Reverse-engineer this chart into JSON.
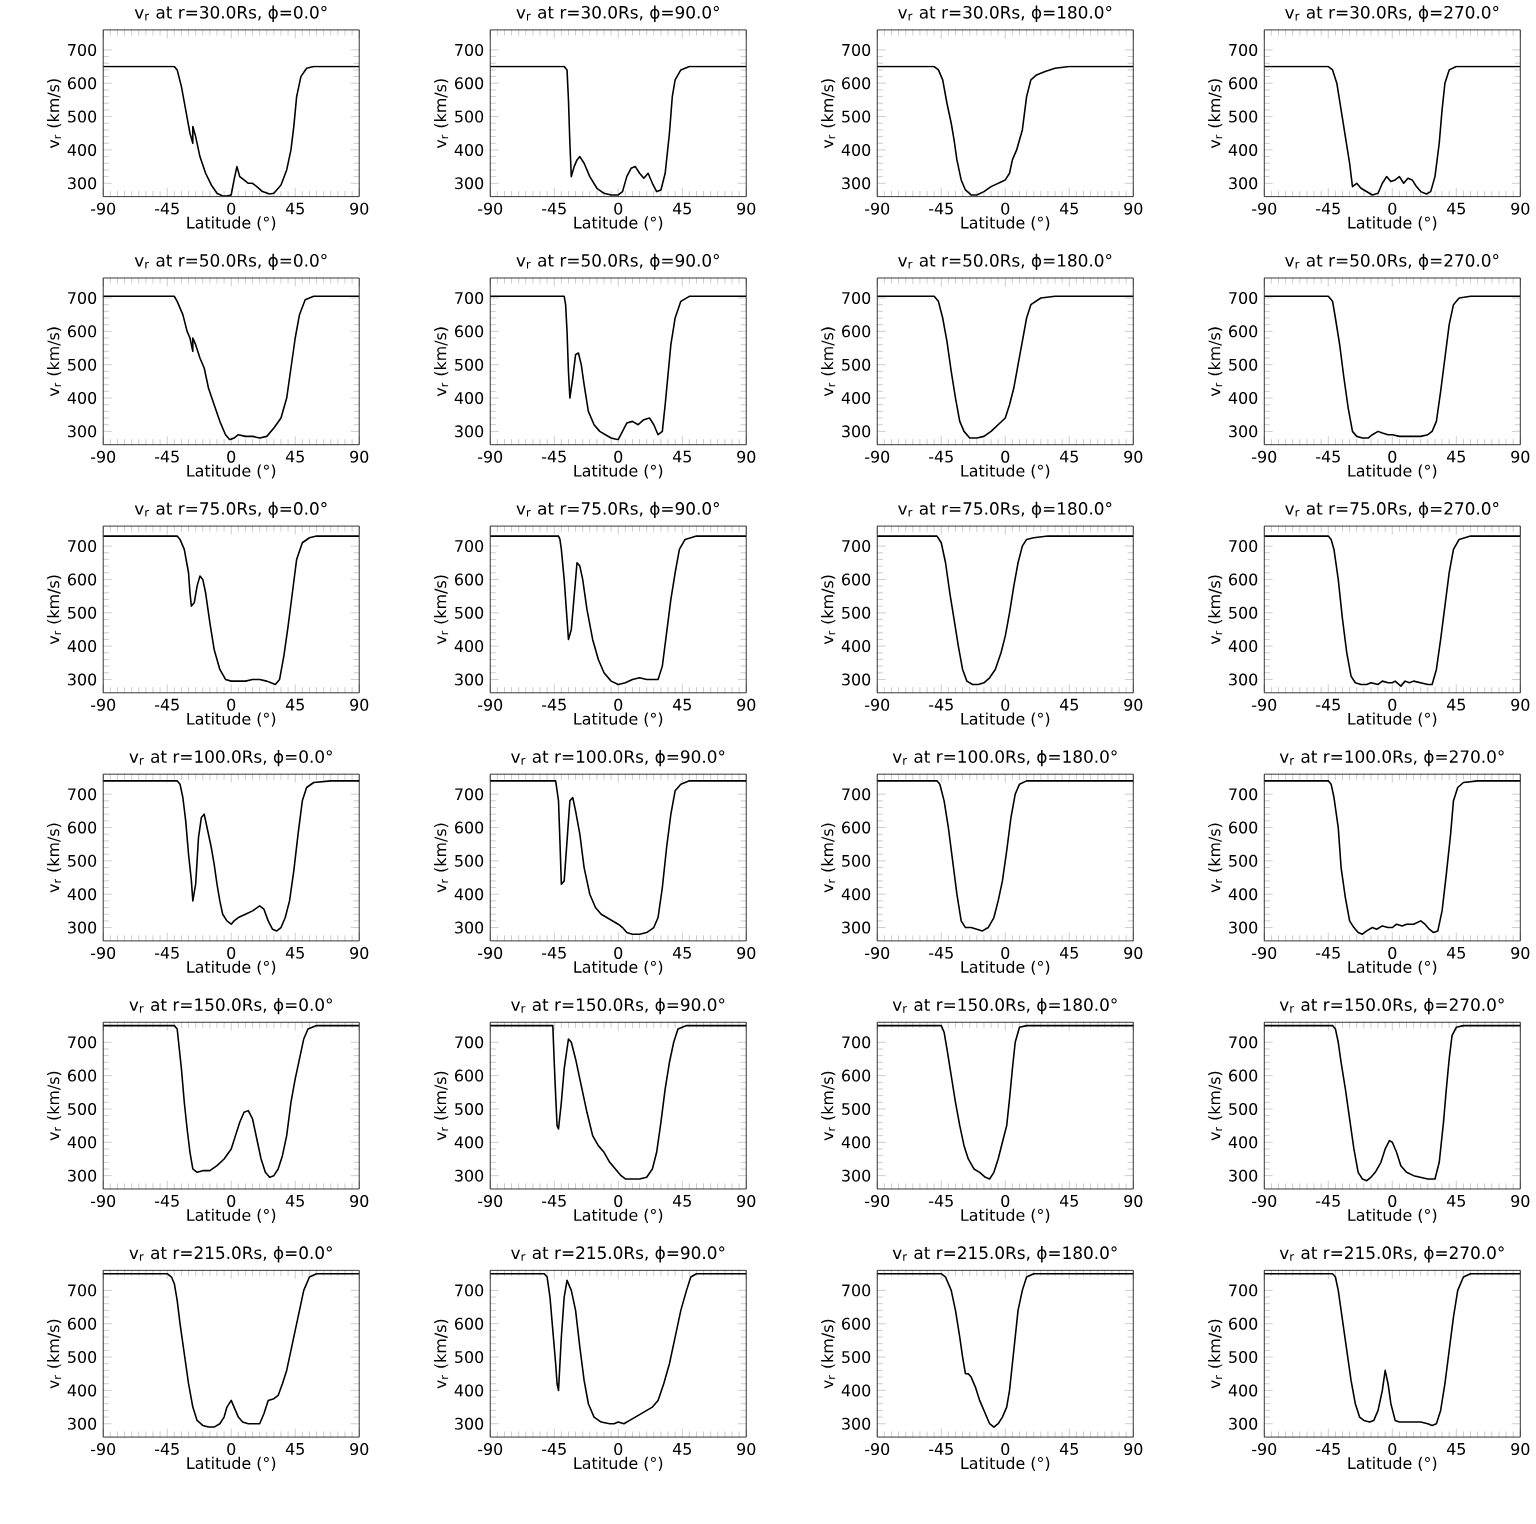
{
  "chart_data": [
    {
      "type": "line",
      "title": "v$_{r}$ at r=30.0Rs, ϕ=0.0°",
      "xlabel": "Latitude (°)",
      "ylabel": "v$_{r}$ (km/s)",
      "color": "#000000",
      "xlim": [
        -90,
        90
      ],
      "ylim": [
        260,
        760
      ],
      "xticks": [
        -90,
        -45,
        0,
        45,
        90
      ],
      "yticks": [
        300,
        400,
        500,
        600,
        700
      ],
      "x": [
        -90,
        -40,
        -38,
        -35,
        -32,
        -29,
        -27,
        -27,
        -25,
        -22,
        -18,
        -14,
        -10,
        -6,
        -3,
        0,
        2,
        4,
        6,
        9,
        12,
        15,
        18,
        22,
        27,
        30,
        35,
        39,
        42,
        44,
        46,
        49,
        53,
        58,
        90
      ],
      "values": [
        650,
        650,
        640,
        590,
        520,
        450,
        420,
        470,
        440,
        380,
        330,
        295,
        270,
        262,
        262,
        265,
        310,
        350,
        320,
        310,
        300,
        300,
        290,
        275,
        268,
        270,
        295,
        340,
        400,
        470,
        560,
        620,
        645,
        650,
        650
      ]
    },
    {
      "type": "line",
      "title": "v$_{r}$ at r=30.0Rs, ϕ=90.0°",
      "xlabel": "Latitude (°)",
      "ylabel": "v$_{r}$ (km/s)",
      "color": "#000000",
      "xlim": [
        -90,
        90
      ],
      "ylim": [
        260,
        760
      ],
      "xticks": [
        -90,
        -45,
        0,
        45,
        90
      ],
      "yticks": [
        300,
        400,
        500,
        600,
        700
      ],
      "x": [
        -90,
        -38,
        -36,
        -35,
        -34,
        -33,
        -31,
        -29,
        -27,
        -24,
        -20,
        -15,
        -10,
        -5,
        0,
        3,
        6,
        9,
        12,
        15,
        18,
        21,
        24,
        27,
        30,
        33,
        36,
        38,
        40,
        44,
        50,
        90
      ],
      "values": [
        650,
        650,
        640,
        550,
        420,
        320,
        350,
        370,
        380,
        360,
        320,
        285,
        270,
        265,
        265,
        275,
        320,
        345,
        350,
        330,
        315,
        330,
        300,
        275,
        280,
        330,
        450,
        560,
        610,
        640,
        650,
        650
      ]
    },
    {
      "type": "line",
      "title": "v$_{r}$ at r=30.0Rs, ϕ=180.0°",
      "xlabel": "Latitude (°)",
      "ylabel": "v$_{r}$ (km/s)",
      "color": "#000000",
      "xlim": [
        -90,
        90
      ],
      "ylim": [
        260,
        760
      ],
      "xticks": [
        -90,
        -45,
        0,
        45,
        90
      ],
      "yticks": [
        300,
        400,
        500,
        600,
        700
      ],
      "x": [
        -90,
        -50,
        -47,
        -44,
        -41,
        -38,
        -36,
        -34,
        -31,
        -28,
        -24,
        -20,
        -15,
        -10,
        -5,
        0,
        3,
        5,
        8,
        12,
        15,
        18,
        22,
        28,
        35,
        45,
        90
      ],
      "values": [
        650,
        650,
        640,
        610,
        540,
        480,
        430,
        370,
        310,
        280,
        265,
        265,
        275,
        290,
        300,
        310,
        330,
        370,
        400,
        460,
        560,
        610,
        625,
        635,
        645,
        650,
        650
      ]
    },
    {
      "type": "line",
      "title": "v$_{r}$ at r=30.0Rs, ϕ=270.0°",
      "xlabel": "Latitude (°)",
      "ylabel": "v$_{r}$ (km/s)",
      "color": "#000000",
      "xlim": [
        -90,
        90
      ],
      "ylim": [
        260,
        760
      ],
      "xticks": [
        -90,
        -45,
        0,
        45,
        90
      ],
      "yticks": [
        300,
        400,
        500,
        600,
        700
      ],
      "x": [
        -90,
        -45,
        -42,
        -39,
        -36,
        -33,
        -30,
        -28,
        -25,
        -22,
        -18,
        -14,
        -10,
        -7,
        -4,
        -1,
        2,
        5,
        8,
        11,
        14,
        17,
        20,
        24,
        27,
        30,
        33,
        35,
        37,
        40,
        45,
        90
      ],
      "values": [
        650,
        650,
        640,
        600,
        520,
        440,
        360,
        290,
        300,
        285,
        275,
        265,
        270,
        300,
        320,
        305,
        310,
        320,
        300,
        315,
        310,
        290,
        275,
        268,
        275,
        320,
        420,
        520,
        600,
        640,
        650,
        650
      ]
    },
    {
      "type": "line",
      "title": "v$_{r}$ at r=50.0Rs, ϕ=0.0°",
      "xlabel": "Latitude (°)",
      "ylabel": "v$_{r}$ (km/s)",
      "color": "#000000",
      "xlim": [
        -90,
        90
      ],
      "ylim": [
        260,
        760
      ],
      "xticks": [
        -90,
        -45,
        0,
        45,
        90
      ],
      "yticks": [
        300,
        400,
        500,
        600,
        700
      ],
      "x": [
        -90,
        -40,
        -38,
        -34,
        -31,
        -29,
        -27,
        -27,
        -25,
        -22,
        -19,
        -16,
        -12,
        -8,
        -4,
        -1,
        2,
        5,
        10,
        15,
        20,
        25,
        30,
        35,
        39,
        42,
        45,
        48,
        52,
        58,
        90
      ],
      "values": [
        705,
        705,
        690,
        650,
        600,
        580,
        540,
        580,
        560,
        520,
        490,
        430,
        380,
        330,
        290,
        275,
        280,
        290,
        285,
        285,
        280,
        285,
        310,
        340,
        400,
        490,
        580,
        650,
        695,
        705,
        705
      ]
    },
    {
      "type": "line",
      "title": "v$_{r}$ at r=50.0Rs, ϕ=90.0°",
      "xlabel": "Latitude (°)",
      "ylabel": "v$_{r}$ (km/s)",
      "color": "#000000",
      "xlim": [
        -90,
        90
      ],
      "ylim": [
        260,
        760
      ],
      "xticks": [
        -90,
        -45,
        0,
        45,
        90
      ],
      "yticks": [
        300,
        400,
        500,
        600,
        700
      ],
      "x": [
        -90,
        -38,
        -37,
        -36,
        -35,
        -34,
        -32,
        -30,
        -28,
        -26,
        -24,
        -21,
        -17,
        -13,
        -9,
        -5,
        0,
        3,
        6,
        10,
        14,
        18,
        22,
        25,
        28,
        31,
        33,
        35,
        37,
        40,
        44,
        50,
        90
      ],
      "values": [
        705,
        705,
        680,
        600,
        480,
        400,
        460,
        530,
        535,
        500,
        440,
        360,
        320,
        300,
        290,
        280,
        275,
        300,
        325,
        330,
        320,
        335,
        340,
        320,
        290,
        300,
        380,
        470,
        560,
        640,
        690,
        705,
        705
      ]
    },
    {
      "type": "line",
      "title": "v$_{r}$ at r=50.0Rs, ϕ=180.0°",
      "xlabel": "Latitude (°)",
      "ylabel": "v$_{r}$ (km/s)",
      "color": "#000000",
      "xlim": [
        -90,
        90
      ],
      "ylim": [
        260,
        760
      ],
      "xticks": [
        -90,
        -45,
        0,
        45,
        90
      ],
      "yticks": [
        300,
        400,
        500,
        600,
        700
      ],
      "x": [
        -90,
        -50,
        -47,
        -44,
        -41,
        -38,
        -35,
        -32,
        -29,
        -25,
        -20,
        -15,
        -10,
        -5,
        0,
        3,
        6,
        9,
        12,
        15,
        18,
        25,
        35,
        90
      ],
      "values": [
        705,
        705,
        690,
        640,
        570,
        480,
        400,
        330,
        300,
        280,
        280,
        285,
        300,
        320,
        340,
        380,
        430,
        500,
        570,
        640,
        680,
        700,
        705,
        705
      ]
    },
    {
      "type": "line",
      "title": "v$_{r}$ at r=50.0Rs, ϕ=270.0°",
      "xlabel": "Latitude (°)",
      "ylabel": "v$_{r}$ (km/s)",
      "color": "#000000",
      "xlim": [
        -90,
        90
      ],
      "ylim": [
        260,
        760
      ],
      "xticks": [
        -90,
        -45,
        0,
        45,
        90
      ],
      "yticks": [
        300,
        400,
        500,
        600,
        700
      ],
      "x": [
        -90,
        -45,
        -42,
        -40,
        -37,
        -34,
        -31,
        -28,
        -25,
        -21,
        -17,
        -14,
        -10,
        -7,
        -3,
        0,
        5,
        10,
        20,
        25,
        28,
        31,
        34,
        37,
        40,
        43,
        47,
        55,
        90
      ],
      "values": [
        705,
        705,
        690,
        640,
        560,
        460,
        370,
        300,
        285,
        280,
        280,
        290,
        300,
        295,
        290,
        290,
        285,
        285,
        285,
        290,
        300,
        330,
        420,
        520,
        620,
        680,
        700,
        705,
        705
      ]
    },
    {
      "type": "line",
      "title": "v$_{r}$ at r=75.0Rs, ϕ=0.0°",
      "xlabel": "Latitude (°)",
      "ylabel": "v$_{r}$ (km/s)",
      "color": "#000000",
      "xlim": [
        -90,
        90
      ],
      "ylim": [
        260,
        760
      ],
      "xticks": [
        -90,
        -45,
        0,
        45,
        90
      ],
      "yticks": [
        300,
        400,
        500,
        600,
        700
      ],
      "x": [
        -90,
        -38,
        -36,
        -33,
        -30,
        -29,
        -28,
        -26,
        -24,
        -22,
        -20,
        -18,
        -15,
        -12,
        -8,
        -4,
        0,
        5,
        10,
        15,
        20,
        25,
        28,
        31,
        34,
        37,
        40,
        43,
        46,
        50,
        55,
        60,
        90
      ],
      "values": [
        730,
        730,
        720,
        690,
        620,
        560,
        520,
        530,
        580,
        610,
        600,
        560,
        470,
        390,
        330,
        300,
        295,
        295,
        295,
        300,
        300,
        295,
        290,
        285,
        300,
        370,
        460,
        560,
        660,
        710,
        725,
        730,
        730
      ]
    },
    {
      "type": "line",
      "title": "v$_{r}$ at r=75.0Rs, ϕ=90.0°",
      "xlabel": "Latitude (°)",
      "ylabel": "v$_{r}$ (km/s)",
      "color": "#000000",
      "xlim": [
        -90,
        90
      ],
      "ylim": [
        260,
        760
      ],
      "xticks": [
        -90,
        -45,
        0,
        45,
        90
      ],
      "yticks": [
        300,
        400,
        500,
        600,
        700
      ],
      "x": [
        -90,
        -42,
        -41,
        -40,
        -38,
        -36,
        -35,
        -33,
        -31,
        -29,
        -27,
        -25,
        -22,
        -18,
        -14,
        -10,
        -5,
        0,
        5,
        10,
        15,
        20,
        25,
        28,
        31,
        34,
        37,
        40,
        43,
        47,
        55,
        90
      ],
      "values": [
        730,
        730,
        720,
        690,
        600,
        480,
        420,
        450,
        550,
        650,
        640,
        600,
        510,
        420,
        360,
        320,
        295,
        285,
        290,
        300,
        305,
        300,
        300,
        300,
        340,
        440,
        540,
        620,
        690,
        720,
        730,
        730
      ]
    },
    {
      "type": "line",
      "title": "v$_{r}$ at r=75.0Rs, ϕ=180.0°",
      "xlabel": "Latitude (°)",
      "ylabel": "v$_{r}$ (km/s)",
      "color": "#000000",
      "xlim": [
        -90,
        90
      ],
      "ylim": [
        260,
        760
      ],
      "xticks": [
        -90,
        -45,
        0,
        45,
        90
      ],
      "yticks": [
        300,
        400,
        500,
        600,
        700
      ],
      "x": [
        -90,
        -48,
        -45,
        -42,
        -39,
        -36,
        -33,
        -30,
        -27,
        -23,
        -19,
        -15,
        -11,
        -7,
        -3,
        0,
        3,
        6,
        9,
        12,
        15,
        20,
        30,
        90
      ],
      "values": [
        730,
        730,
        710,
        650,
        560,
        480,
        400,
        330,
        295,
        285,
        285,
        290,
        305,
        330,
        380,
        430,
        500,
        580,
        650,
        700,
        720,
        725,
        730,
        730
      ]
    },
    {
      "type": "line",
      "title": "v$_{r}$ at r=75.0Rs, ϕ=270.0°",
      "xlabel": "Latitude (°)",
      "ylabel": "v$_{r}$ (km/s)",
      "color": "#000000",
      "xlim": [
        -90,
        90
      ],
      "ylim": [
        260,
        760
      ],
      "xticks": [
        -90,
        -45,
        0,
        45,
        90
      ],
      "yticks": [
        300,
        400,
        500,
        600,
        700
      ],
      "x": [
        -90,
        -45,
        -43,
        -41,
        -38,
        -35,
        -32,
        -29,
        -26,
        -22,
        -18,
        -15,
        -10,
        -7,
        -3,
        0,
        2,
        6,
        9,
        12,
        15,
        20,
        25,
        28,
        31,
        34,
        37,
        40,
        43,
        47,
        55,
        90
      ],
      "values": [
        730,
        730,
        720,
        690,
        600,
        480,
        380,
        310,
        290,
        285,
        285,
        290,
        285,
        295,
        290,
        290,
        295,
        280,
        295,
        290,
        295,
        290,
        285,
        285,
        330,
        420,
        520,
        620,
        690,
        720,
        730,
        730
      ]
    },
    {
      "type": "line",
      "title": "v$_{r}$ at r=100.0Rs, ϕ=0.0°",
      "xlabel": "Latitude (°)",
      "ylabel": "v$_{r}$ (km/s)",
      "color": "#000000",
      "xlim": [
        -90,
        90
      ],
      "ylim": [
        260,
        760
      ],
      "xticks": [
        -90,
        -45,
        0,
        45,
        90
      ],
      "yticks": [
        300,
        400,
        500,
        600,
        700
      ],
      "x": [
        -90,
        -38,
        -36,
        -34,
        -32,
        -30,
        -28,
        -27,
        -25,
        -23,
        -21,
        -19,
        -17,
        -14,
        -12,
        -10,
        -8,
        -6,
        -3,
        0,
        2,
        5,
        10,
        15,
        20,
        23,
        26,
        29,
        32,
        35,
        38,
        41,
        44,
        47,
        50,
        53,
        58,
        70,
        90
      ],
      "values": [
        740,
        740,
        730,
        690,
        620,
        520,
        440,
        380,
        430,
        570,
        630,
        640,
        600,
        540,
        490,
        430,
        380,
        340,
        320,
        310,
        320,
        330,
        340,
        350,
        365,
        355,
        320,
        295,
        290,
        300,
        330,
        380,
        470,
        580,
        680,
        720,
        735,
        740,
        740
      ]
    },
    {
      "type": "line",
      "title": "v$_{r}$ at r=100.0Rs, ϕ=90.0°",
      "xlabel": "Latitude (°)",
      "ylabel": "v$_{r}$ (km/s)",
      "color": "#000000",
      "xlim": [
        -90,
        90
      ],
      "ylim": [
        260,
        760
      ],
      "xticks": [
        -90,
        -45,
        0,
        45,
        90
      ],
      "yticks": [
        300,
        400,
        500,
        600,
        700
      ],
      "x": [
        -90,
        -45,
        -44,
        -42,
        -41,
        -40,
        -38,
        -36,
        -34,
        -32,
        -30,
        -27,
        -24,
        -20,
        -16,
        -12,
        -8,
        -4,
        0,
        3,
        6,
        10,
        15,
        20,
        25,
        28,
        31,
        34,
        37,
        40,
        44,
        50,
        90
      ],
      "values": [
        740,
        740,
        740,
        680,
        560,
        430,
        440,
        560,
        680,
        690,
        650,
        580,
        480,
        400,
        360,
        340,
        330,
        320,
        310,
        300,
        285,
        280,
        280,
        285,
        300,
        330,
        420,
        540,
        640,
        710,
        730,
        740,
        740
      ]
    },
    {
      "type": "line",
      "title": "v$_{r}$ at r=100.0Rs, ϕ=180.0°",
      "xlabel": "Latitude (°)",
      "ylabel": "v$_{r}$ (km/s)",
      "color": "#000000",
      "xlim": [
        -90,
        90
      ],
      "ylim": [
        260,
        760
      ],
      "xticks": [
        -90,
        -45,
        0,
        45,
        90
      ],
      "yticks": [
        300,
        400,
        500,
        600,
        700
      ],
      "x": [
        -90,
        -48,
        -46,
        -43,
        -40,
        -37,
        -34,
        -31,
        -28,
        -24,
        -20,
        -16,
        -12,
        -8,
        -5,
        -2,
        1,
        4,
        7,
        10,
        15,
        90
      ],
      "values": [
        740,
        740,
        730,
        680,
        600,
        500,
        400,
        320,
        300,
        300,
        295,
        290,
        300,
        330,
        380,
        440,
        530,
        630,
        700,
        730,
        740,
        740
      ]
    },
    {
      "type": "line",
      "title": "v$_{r}$ at r=100.0Rs, ϕ=270.0°",
      "xlabel": "Latitude (°)",
      "ylabel": "v$_{r}$ (km/s)",
      "color": "#000000",
      "xlim": [
        -90,
        90
      ],
      "ylim": [
        260,
        760
      ],
      "xticks": [
        -90,
        -45,
        0,
        45,
        90
      ],
      "yticks": [
        300,
        400,
        500,
        600,
        700
      ],
      "x": [
        -90,
        -45,
        -43,
        -41,
        -38,
        -36,
        -33,
        -30,
        -27,
        -24,
        -21,
        -18,
        -14,
        -11,
        -7,
        -3,
        0,
        3,
        7,
        10,
        15,
        20,
        23,
        26,
        29,
        32,
        35,
        38,
        41,
        43,
        46,
        50,
        60,
        90
      ],
      "values": [
        740,
        740,
        730,
        690,
        600,
        480,
        390,
        320,
        300,
        285,
        280,
        290,
        300,
        295,
        305,
        300,
        300,
        310,
        305,
        310,
        310,
        320,
        310,
        295,
        285,
        290,
        350,
        460,
        580,
        680,
        720,
        735,
        740,
        740
      ]
    },
    {
      "type": "line",
      "title": "v$_{r}$ at r=150.0Rs, ϕ=0.0°",
      "xlabel": "Latitude (°)",
      "ylabel": "v$_{r}$ (km/s)",
      "color": "#000000",
      "xlim": [
        -90,
        90
      ],
      "ylim": [
        260,
        760
      ],
      "xticks": [
        -90,
        -45,
        0,
        45,
        90
      ],
      "yticks": [
        300,
        400,
        500,
        600,
        700
      ],
      "x": [
        -90,
        -40,
        -38,
        -37,
        -35,
        -33,
        -31,
        -29,
        -27,
        -24,
        -20,
        -15,
        -10,
        -5,
        0,
        3,
        6,
        9,
        12,
        15,
        18,
        21,
        24,
        27,
        30,
        33,
        36,
        39,
        42,
        45,
        48,
        51,
        54,
        60,
        90
      ],
      "values": [
        750,
        750,
        740,
        700,
        620,
        520,
        440,
        370,
        320,
        310,
        315,
        315,
        330,
        350,
        380,
        420,
        460,
        490,
        495,
        470,
        410,
        350,
        310,
        295,
        300,
        320,
        360,
        420,
        520,
        590,
        650,
        710,
        740,
        750,
        750
      ]
    },
    {
      "type": "line",
      "title": "v$_{r}$ at r=150.0Rs, ϕ=90.0°",
      "xlabel": "Latitude (°)",
      "ylabel": "v$_{r}$ (km/s)",
      "color": "#000000",
      "xlim": [
        -90,
        90
      ],
      "ylim": [
        260,
        760
      ],
      "xticks": [
        -90,
        -45,
        0,
        45,
        90
      ],
      "yticks": [
        300,
        400,
        500,
        600,
        700
      ],
      "x": [
        -90,
        -46,
        -45,
        -44,
        -43,
        -42,
        -40,
        -38,
        -35,
        -33,
        -30,
        -26,
        -22,
        -18,
        -14,
        -10,
        -6,
        -2,
        2,
        5,
        10,
        15,
        20,
        24,
        27,
        30,
        33,
        36,
        39,
        42,
        48,
        90
      ],
      "values": [
        750,
        750,
        640,
        540,
        450,
        440,
        520,
        620,
        710,
        700,
        650,
        570,
        490,
        420,
        390,
        370,
        340,
        320,
        300,
        290,
        290,
        290,
        295,
        320,
        370,
        460,
        560,
        640,
        700,
        740,
        750,
        750
      ]
    },
    {
      "type": "line",
      "title": "v$_{r}$ at r=150.0Rs, ϕ=180.0°",
      "xlabel": "Latitude (°)",
      "ylabel": "v$_{r}$ (km/s)",
      "color": "#000000",
      "xlim": [
        -90,
        90
      ],
      "ylim": [
        260,
        760
      ],
      "xticks": [
        -90,
        -45,
        0,
        45,
        90
      ],
      "yticks": [
        300,
        400,
        500,
        600,
        700
      ],
      "x": [
        -90,
        -45,
        -43,
        -41,
        -38,
        -35,
        -32,
        -29,
        -26,
        -22,
        -18,
        -14,
        -11,
        -8,
        -5,
        -2,
        1,
        3,
        5,
        7,
        10,
        15,
        90
      ],
      "values": [
        750,
        750,
        730,
        680,
        600,
        520,
        450,
        390,
        350,
        320,
        310,
        295,
        290,
        310,
        350,
        400,
        450,
        530,
        620,
        700,
        745,
        750,
        750
      ]
    },
    {
      "type": "line",
      "title": "v$_{r}$ at r=150.0Rs, ϕ=270.0°",
      "xlabel": "Latitude (°)",
      "ylabel": "v$_{r}$ (km/s)",
      "color": "#000000",
      "xlim": [
        -90,
        90
      ],
      "ylim": [
        260,
        760
      ],
      "xticks": [
        -90,
        -45,
        0,
        45,
        90
      ],
      "yticks": [
        300,
        400,
        500,
        600,
        700
      ],
      "x": [
        -90,
        -42,
        -40,
        -38,
        -36,
        -33,
        -30,
        -27,
        -24,
        -21,
        -18,
        -15,
        -12,
        -8,
        -5,
        -2,
        0,
        3,
        6,
        10,
        15,
        20,
        25,
        30,
        33,
        36,
        38,
        40,
        42,
        45,
        50,
        90
      ],
      "values": [
        750,
        750,
        740,
        700,
        640,
        560,
        470,
        380,
        310,
        290,
        285,
        295,
        310,
        340,
        380,
        405,
        400,
        370,
        330,
        310,
        300,
        295,
        290,
        290,
        340,
        460,
        560,
        650,
        720,
        745,
        750,
        750
      ]
    },
    {
      "type": "line",
      "title": "v$_{r}$ at r=215.0Rs, ϕ=0.0°",
      "xlabel": "Latitude (°)",
      "ylabel": "v$_{r}$ (km/s)",
      "color": "#000000",
      "xlim": [
        -90,
        90
      ],
      "ylim": [
        260,
        760
      ],
      "xticks": [
        -90,
        -45,
        0,
        45,
        90
      ],
      "yticks": [
        300,
        400,
        500,
        600,
        700
      ],
      "x": [
        -90,
        -45,
        -42,
        -40,
        -38,
        -36,
        -33,
        -30,
        -27,
        -24,
        -20,
        -16,
        -12,
        -8,
        -5,
        -3,
        0,
        2,
        5,
        8,
        12,
        16,
        20,
        23,
        26,
        30,
        33,
        36,
        39,
        42,
        45,
        48,
        51,
        55,
        60,
        90
      ],
      "values": [
        750,
        750,
        740,
        720,
        670,
        600,
        510,
        420,
        350,
        310,
        295,
        290,
        290,
        300,
        320,
        350,
        370,
        350,
        320,
        305,
        300,
        300,
        300,
        330,
        370,
        375,
        385,
        420,
        460,
        520,
        580,
        640,
        700,
        740,
        750,
        750
      ]
    },
    {
      "type": "line",
      "title": "v$_{r}$ at r=215.0Rs, ϕ=90.0°",
      "xlabel": "Latitude (°)",
      "ylabel": "v$_{r}$ (km/s)",
      "color": "#000000",
      "xlim": [
        -90,
        90
      ],
      "ylim": [
        260,
        760
      ],
      "xticks": [
        -90,
        -45,
        0,
        45,
        90
      ],
      "yticks": [
        300,
        400,
        500,
        600,
        700
      ],
      "x": [
        -90,
        -52,
        -50,
        -48,
        -46,
        -44,
        -43,
        -42,
        -40,
        -38,
        -36,
        -33,
        -30,
        -27,
        -24,
        -21,
        -17,
        -12,
        -6,
        -3,
        0,
        4,
        8,
        12,
        16,
        20,
        24,
        28,
        32,
        36,
        40,
        44,
        48,
        51,
        55,
        90
      ],
      "values": [
        750,
        750,
        740,
        680,
        580,
        480,
        420,
        400,
        560,
        680,
        730,
        700,
        640,
        530,
        430,
        360,
        320,
        305,
        300,
        300,
        305,
        300,
        310,
        320,
        330,
        340,
        350,
        370,
        420,
        480,
        560,
        640,
        700,
        740,
        750,
        750
      ]
    },
    {
      "type": "line",
      "title": "v$_{r}$ at r=215.0Rs, ϕ=180.0°",
      "xlabel": "Latitude (°)",
      "ylabel": "v$_{r}$ (km/s)",
      "color": "#000000",
      "xlim": [
        -90,
        90
      ],
      "ylim": [
        260,
        760
      ],
      "xticks": [
        -90,
        -45,
        0,
        45,
        90
      ],
      "yticks": [
        300,
        400,
        500,
        600,
        700
      ],
      "x": [
        -90,
        -45,
        -42,
        -38,
        -35,
        -32,
        -30,
        -28,
        -26,
        -24,
        -21,
        -18,
        -14,
        -11,
        -8,
        -5,
        -2,
        1,
        3,
        5,
        7,
        9,
        12,
        15,
        20,
        90
      ],
      "values": [
        750,
        750,
        740,
        700,
        640,
        560,
        500,
        450,
        450,
        440,
        410,
        370,
        330,
        300,
        290,
        300,
        320,
        350,
        400,
        480,
        560,
        640,
        700,
        740,
        750,
        750
      ]
    },
    {
      "type": "line",
      "title": "v$_{r}$ at r=215.0Rs, ϕ=270.0°",
      "xlabel": "Latitude (°)",
      "ylabel": "v$_{r}$ (km/s)",
      "color": "#000000",
      "xlim": [
        -90,
        90
      ],
      "ylim": [
        260,
        760
      ],
      "xticks": [
        -90,
        -45,
        0,
        45,
        90
      ],
      "yticks": [
        300,
        400,
        500,
        600,
        700
      ],
      "x": [
        -90,
        -42,
        -40,
        -38,
        -35,
        -32,
        -29,
        -26,
        -23,
        -20,
        -16,
        -13,
        -10,
        -7,
        -5,
        -3,
        -1,
        2,
        5,
        10,
        15,
        20,
        25,
        28,
        31,
        34,
        37,
        40,
        43,
        46,
        50,
        55,
        90
      ],
      "values": [
        750,
        750,
        740,
        700,
        610,
        520,
        430,
        360,
        320,
        310,
        305,
        310,
        340,
        400,
        460,
        420,
        360,
        310,
        305,
        305,
        305,
        305,
        300,
        295,
        300,
        340,
        420,
        520,
        620,
        700,
        740,
        750,
        750
      ]
    }
  ]
}
